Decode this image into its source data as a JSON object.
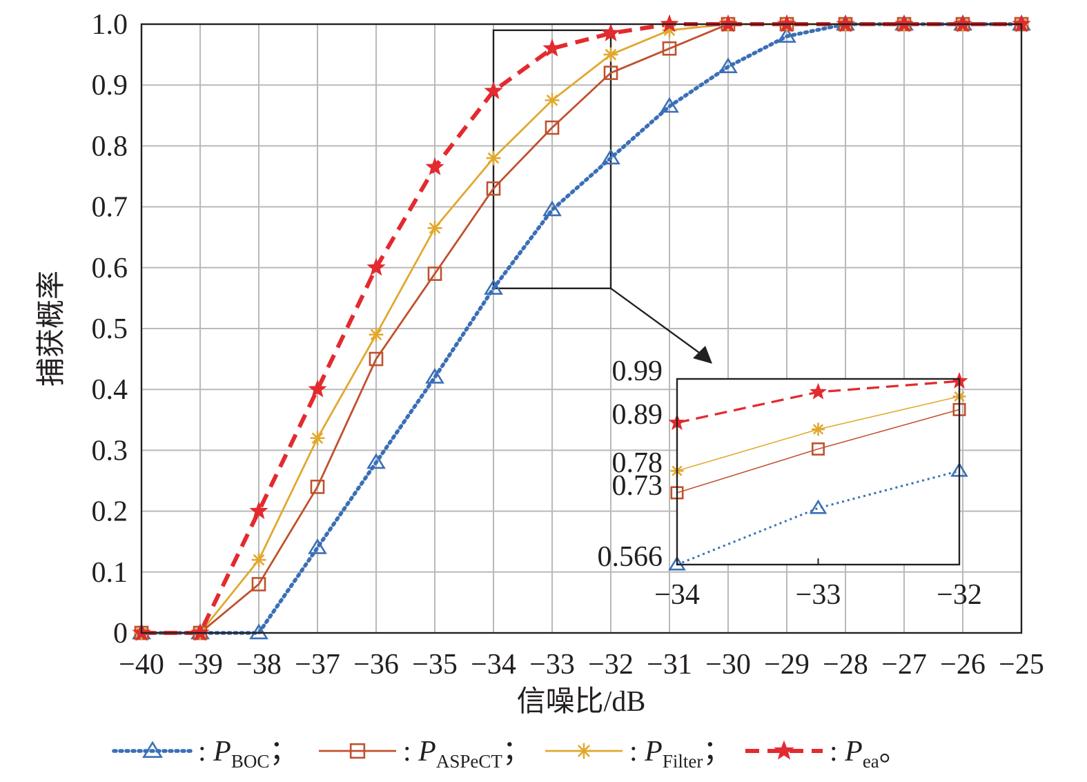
{
  "chart_data": [
    {
      "type": "line",
      "xlabel": "信噪比/dB",
      "ylabel": "捕获概率",
      "x": [
        -40,
        -39,
        -38,
        -37,
        -36,
        -35,
        -34,
        -33,
        -32,
        -31,
        -30,
        -29,
        -28,
        -27,
        -26,
        -25
      ],
      "xlim": [
        -40,
        -25
      ],
      "ylim": [
        0,
        1.0
      ],
      "xticks": [
        -40,
        -39,
        -38,
        -37,
        -36,
        -35,
        -34,
        -33,
        -32,
        -31,
        -30,
        -29,
        -28,
        -27,
        -26,
        -25
      ],
      "xtick_labels": [
        "−40",
        "−39",
        "−38",
        "−37",
        "−36",
        "−35",
        "−34",
        "−33",
        "−32",
        "−31",
        "−30",
        "−29",
        "−28",
        "−27",
        "−26",
        "−25"
      ],
      "yticks": [
        0,
        0.1,
        0.2,
        0.3,
        0.4,
        0.5,
        0.6,
        0.7,
        0.8,
        0.9,
        1.0
      ],
      "ytick_labels": [
        "0",
        "0.1",
        "0.2",
        "0.3",
        "0.4",
        "0.5",
        "0.6",
        "0.7",
        "0.8",
        "0.9",
        "1.0"
      ],
      "grid": true,
      "series": [
        {
          "name": "BOC",
          "color": "#3a6fb7",
          "marker": "triangle",
          "line": "dotted",
          "points": [
            [
              -40,
              0
            ],
            [
              -39,
              0
            ],
            [
              -38,
              0
            ],
            [
              -37,
              0.14
            ],
            [
              -36,
              0.28
            ],
            [
              -35,
              0.42
            ],
            [
              -34,
              0.566
            ],
            [
              -33,
              0.695
            ],
            [
              -32,
              0.78
            ],
            [
              -31,
              0.865
            ],
            [
              -30,
              0.93
            ],
            [
              -29,
              0.98
            ],
            [
              -28,
              1.0
            ],
            [
              -27,
              1.0
            ],
            [
              -26,
              1.0
            ],
            [
              -25,
              1.0
            ]
          ]
        },
        {
          "name": "ASPeCT",
          "color": "#c0502d",
          "marker": "square",
          "line": "solid",
          "points": [
            [
              -40,
              0
            ],
            [
              -39,
              0
            ],
            [
              -38,
              0.08
            ],
            [
              -37,
              0.24
            ],
            [
              -36,
              0.45
            ],
            [
              -35,
              0.59
            ],
            [
              -34,
              0.73
            ],
            [
              -33,
              0.83
            ],
            [
              -32,
              0.92
            ],
            [
              -31,
              0.96
            ],
            [
              -30,
              1.0
            ],
            [
              -29,
              1.0
            ],
            [
              -28,
              1.0
            ],
            [
              -27,
              1.0
            ],
            [
              -26,
              1.0
            ],
            [
              -25,
              1.0
            ]
          ]
        },
        {
          "name": "Filter",
          "color": "#e0a82e",
          "marker": "asterisk",
          "line": "solid",
          "points": [
            [
              -40,
              0
            ],
            [
              -39,
              0
            ],
            [
              -38,
              0.12
            ],
            [
              -37,
              0.32
            ],
            [
              -36,
              0.49
            ],
            [
              -35,
              0.665
            ],
            [
              -34,
              0.78
            ],
            [
              -33,
              0.875
            ],
            [
              -32,
              0.95
            ],
            [
              -31,
              0.99
            ],
            [
              -30,
              1.0
            ],
            [
              -29,
              1.0
            ],
            [
              -28,
              1.0
            ],
            [
              -27,
              1.0
            ],
            [
              -26,
              1.0
            ],
            [
              -25,
              1.0
            ]
          ]
        },
        {
          "name": "ea",
          "color": "#e32a2f",
          "marker": "star",
          "line": "dashed",
          "points": [
            [
              -40,
              0
            ],
            [
              -39,
              0
            ],
            [
              -38,
              0.2
            ],
            [
              -37,
              0.4
            ],
            [
              -36,
              0.6
            ],
            [
              -35,
              0.765
            ],
            [
              -34,
              0.89
            ],
            [
              -33,
              0.96
            ],
            [
              -32,
              0.985
            ],
            [
              -31,
              1.0
            ],
            [
              -30,
              1.0
            ],
            [
              -29,
              1.0
            ],
            [
              -28,
              1.0
            ],
            [
              -27,
              1.0
            ],
            [
              -26,
              1.0
            ],
            [
              -25,
              1.0
            ]
          ]
        }
      ],
      "zoom_box": {
        "x": [
          -34,
          -32
        ],
        "y": [
          0.566,
          0.99
        ]
      }
    },
    {
      "type": "line",
      "role": "inset",
      "x": [
        -34,
        -33,
        -32
      ],
      "xlim": [
        -34,
        -32
      ],
      "ylim": [
        0.566,
        0.99
      ],
      "xtick_labels": [
        "−34",
        "−33",
        "−32"
      ],
      "ytick_values": [
        0.566,
        0.73,
        0.78,
        0.89,
        0.99
      ],
      "ytick_labels": [
        "0.566",
        "0.73",
        "0.78",
        "0.89",
        "0.99"
      ],
      "series": [
        {
          "name": "BOC",
          "points": [
            [
              -34,
              0.566
            ],
            [
              -33,
              0.695
            ],
            [
              -32,
              0.78
            ]
          ]
        },
        {
          "name": "ASPeCT",
          "points": [
            [
              -34,
              0.73
            ],
            [
              -33,
              0.83
            ],
            [
              -32,
              0.92
            ]
          ]
        },
        {
          "name": "Filter",
          "points": [
            [
              -34,
              0.78
            ],
            [
              -33,
              0.875
            ],
            [
              -32,
              0.95
            ]
          ]
        },
        {
          "name": "ea",
          "points": [
            [
              -34,
              0.89
            ],
            [
              -33,
              0.96
            ],
            [
              -32,
              0.985
            ]
          ]
        }
      ]
    }
  ],
  "legend": {
    "items": [
      {
        "symbol": "P",
        "subscript": "BOC",
        "suffix": "；"
      },
      {
        "symbol": "P",
        "subscript": "ASPeCT",
        "suffix": "；"
      },
      {
        "symbol": "P",
        "subscript": "Filter",
        "suffix": "；"
      },
      {
        "symbol": "P",
        "subscript": "ea",
        "suffix": "。"
      }
    ],
    "separator": ": "
  }
}
